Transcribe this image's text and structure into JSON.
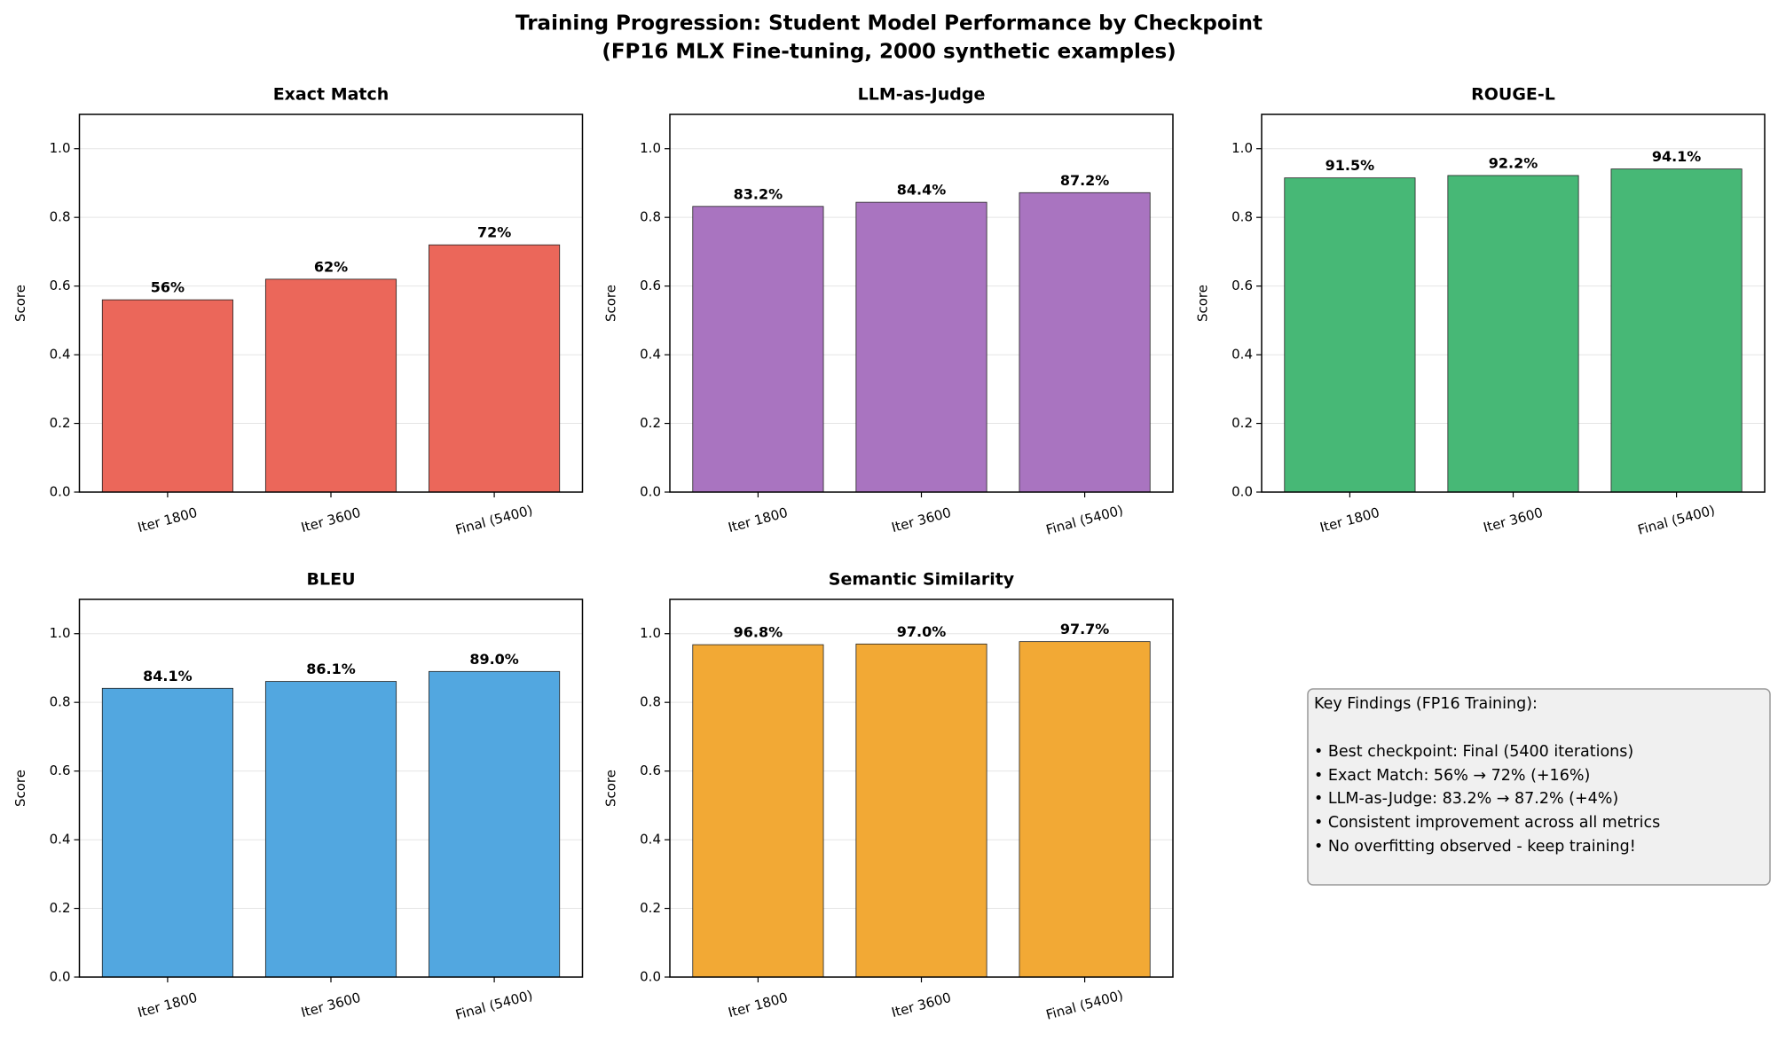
{
  "title": "Training Progression: Student Model Performance by Checkpoint",
  "subtitle": "(FP16 MLX Fine-tuning, 2000 synthetic examples)",
  "chart_data": [
    {
      "type": "bar",
      "title": "Exact Match",
      "ylabel": "Score",
      "categories": [
        "Iter 1800",
        "Iter 3600",
        "Final (5400)"
      ],
      "values": [
        0.56,
        0.62,
        0.72
      ],
      "value_labels": [
        "56%",
        "62%",
        "72%"
      ],
      "color": "#eb675a",
      "ylim": [
        0,
        1.1
      ],
      "yticks": [
        {
          "value": 0,
          "label": "0.0"
        },
        0.2,
        0.4,
        0.6,
        0.8,
        {
          "value": 1,
          "label": "1.0"
        }
      ],
      "grid": true
    },
    {
      "type": "bar",
      "title": "LLM-as-Judge",
      "ylabel": "Score",
      "categories": [
        "Iter 1800",
        "Iter 3600",
        "Final (5400)"
      ],
      "values": [
        0.832,
        0.844,
        0.872
      ],
      "value_labels": [
        "83.2%",
        "84.4%",
        "87.2%"
      ],
      "color": "#a974c0",
      "ylim": [
        0,
        1.1
      ],
      "yticks": [
        {
          "value": 0,
          "label": "0.0"
        },
        0.2,
        0.4,
        0.6,
        0.8,
        {
          "value": 1,
          "label": "1.0"
        }
      ],
      "grid": true
    },
    {
      "type": "bar",
      "title": "ROUGE-L",
      "ylabel": "Score",
      "categories": [
        "Iter 1800",
        "Iter 3600",
        "Final (5400)"
      ],
      "values": [
        0.915,
        0.922,
        0.941
      ],
      "value_labels": [
        "91.5%",
        "92.2%",
        "94.1%"
      ],
      "color": "#47b876",
      "ylim": [
        0,
        1.1
      ],
      "yticks": [
        {
          "value": 0,
          "label": "0.0"
        },
        0.2,
        0.4,
        0.6,
        0.8,
        {
          "value": 1,
          "label": "1.0"
        }
      ],
      "grid": true
    },
    {
      "type": "bar",
      "title": "BLEU",
      "ylabel": "Score",
      "categories": [
        "Iter 1800",
        "Iter 3600",
        "Final (5400)"
      ],
      "values": [
        0.841,
        0.861,
        0.89
      ],
      "value_labels": [
        "84.1%",
        "86.1%",
        "89.0%"
      ],
      "color": "#52a7e0",
      "ylim": [
        0,
        1.1
      ],
      "yticks": [
        {
          "value": 0,
          "label": "0.0"
        },
        0.2,
        0.4,
        0.6,
        0.8,
        {
          "value": 1,
          "label": "1.0"
        }
      ],
      "grid": true
    },
    {
      "type": "bar",
      "title": "Semantic Similarity",
      "ylabel": "Score",
      "categories": [
        "Iter 1800",
        "Iter 3600",
        "Final (5400)"
      ],
      "values": [
        0.968,
        0.97,
        0.977
      ],
      "value_labels": [
        "96.8%",
        "97.0%",
        "97.7%"
      ],
      "color": "#f2a935",
      "ylim": [
        0,
        1.1
      ],
      "yticks": [
        {
          "value": 0,
          "label": "0.0"
        },
        0.2,
        0.4,
        0.6,
        0.8,
        {
          "value": 1,
          "label": "1.0"
        }
      ],
      "grid": true
    }
  ],
  "notes": {
    "title": "Key Findings (FP16 Training):",
    "items": [
      "• Best checkpoint: Final (5400 iterations)",
      "• Exact Match: 56% → 72% (+16%)",
      "• LLM-as-Judge: 83.2% → 87.2% (+4%)",
      "• Consistent improvement across all metrics",
      "• No overfitting observed - keep training!"
    ]
  }
}
